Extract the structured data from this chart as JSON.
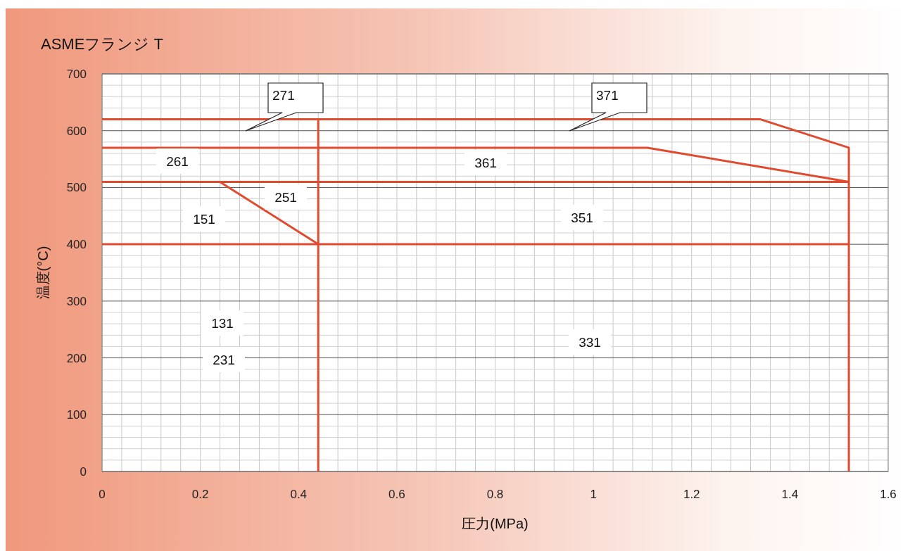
{
  "chart_data": {
    "type": "line",
    "title": "ASMEフランジ T",
    "xlabel": "圧力(MPa)",
    "ylabel": "温度(°C)",
    "xlim": [
      0,
      1.6
    ],
    "xticks": [
      0,
      0.2,
      0.4,
      0.6,
      0.8,
      1,
      1.2,
      1.4,
      1.6
    ],
    "ylim": [
      0,
      700
    ],
    "yticks": [
      0,
      100,
      200,
      300,
      400,
      500,
      600,
      700
    ],
    "grid": true,
    "marker": "none",
    "line_style": "solid",
    "series": [
      {
        "color": "#e04a2e",
        "x": [
          0,
          1.34,
          1.52,
          1.52
        ],
        "values": [
          620,
          620,
          570,
          0
        ]
      },
      {
        "color": "#e04a2e",
        "x": [
          0.44,
          0.44
        ],
        "values": [
          620,
          0
        ]
      },
      {
        "color": "#e04a2e",
        "x": [
          0,
          1.11,
          1.52
        ],
        "values": [
          570,
          570,
          510
        ]
      },
      {
        "color": "#e04a2e",
        "x": [
          0,
          1.52
        ],
        "values": [
          510,
          510
        ]
      },
      {
        "color": "#e04a2e",
        "x": [
          0.24,
          0.44
        ],
        "values": [
          510,
          400
        ]
      },
      {
        "color": "#e04a2e",
        "x": [
          0,
          1.52
        ],
        "values": [
          400,
          400
        ]
      }
    ],
    "annotations": [
      "271",
      "371",
      "261",
      "361",
      "251",
      "151",
      "351",
      "131",
      "231",
      "331"
    ]
  }
}
